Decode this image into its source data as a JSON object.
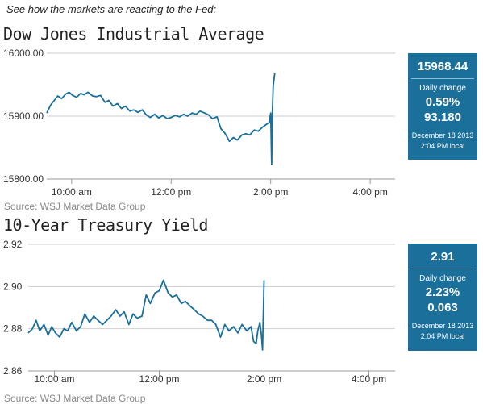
{
  "intro": "See how the markets are reacting to the Fed:",
  "source": "Source: WSJ Market Data Group",
  "chart_data": [
    {
      "type": "line",
      "title": "Dow Jones Industrial Average",
      "xlabel": "",
      "ylabel": "",
      "xlim": [
        9.5,
        16.5
      ],
      "ylim": [
        15800,
        16000
      ],
      "yticks": [
        15800,
        15900,
        16000
      ],
      "ytick_labels": [
        "15800.00",
        "15900.00",
        "16000.00"
      ],
      "xticks": [
        10,
        12,
        14,
        16
      ],
      "xtick_labels": [
        "10:00 am",
        "12:00 pm",
        "2:00 pm",
        "4:00 pm"
      ],
      "grid": true,
      "color": "#1a6f9b",
      "series": [
        {
          "x": [
            9.5,
            9.58,
            9.65,
            9.72,
            9.8,
            9.88,
            9.95,
            10.02,
            10.1,
            10.18,
            10.25,
            10.33,
            10.42,
            10.5,
            10.58,
            10.67,
            10.75,
            10.83,
            10.92,
            11.0,
            11.08,
            11.17,
            11.25,
            11.33,
            11.42,
            11.5,
            11.58,
            11.67,
            11.75,
            11.83,
            11.92,
            12.0,
            12.08,
            12.17,
            12.25,
            12.33,
            12.42,
            12.5,
            12.58,
            12.67,
            12.75,
            12.83,
            12.92,
            13.0,
            13.08,
            13.17,
            13.25,
            13.33,
            13.42,
            13.5,
            13.58,
            13.67,
            13.75,
            13.83,
            13.9,
            13.97,
            14.0,
            14.02,
            14.03,
            14.05,
            14.08
          ],
          "y": [
            15905,
            15918,
            15925,
            15932,
            15928,
            15935,
            15938,
            15933,
            15930,
            15936,
            15934,
            15938,
            15932,
            15931,
            15933,
            15922,
            15925,
            15916,
            15920,
            15912,
            15916,
            15908,
            15910,
            15906,
            15910,
            15902,
            15898,
            15903,
            15897,
            15901,
            15896,
            15898,
            15901,
            15899,
            15903,
            15900,
            15905,
            15903,
            15908,
            15905,
            15902,
            15896,
            15899,
            15880,
            15873,
            15860,
            15866,
            15862,
            15870,
            15872,
            15870,
            15878,
            15876,
            15882,
            15886,
            15890,
            15905,
            15823,
            15900,
            15948,
            15968
          ]
        }
      ],
      "panel": {
        "value": "15968.44",
        "label": "Daily change",
        "pct": "0.59%",
        "change": "93.180",
        "date": "December 18 2013",
        "time": "2:04 PM local"
      }
    },
    {
      "type": "line",
      "title": "10-Year Treasury Yield",
      "xlabel": "",
      "ylabel": "",
      "xlim": [
        9.5,
        16.5
      ],
      "ylim": [
        2.86,
        2.92
      ],
      "yticks": [
        2.86,
        2.88,
        2.9,
        2.92
      ],
      "ytick_labels": [
        "2.86",
        "2.88",
        "2.90",
        "2.92"
      ],
      "xticks": [
        10,
        12,
        14,
        16
      ],
      "xtick_labels": [
        "10:00 am",
        "12:00 pm",
        "2:00 pm",
        "4:00 pm"
      ],
      "grid": true,
      "color": "#1a6f9b",
      "series": [
        {
          "x": [
            9.5,
            9.58,
            9.65,
            9.72,
            9.8,
            9.88,
            9.95,
            10.02,
            10.1,
            10.18,
            10.25,
            10.33,
            10.42,
            10.5,
            10.58,
            10.67,
            10.75,
            10.83,
            10.92,
            11.0,
            11.08,
            11.17,
            11.25,
            11.33,
            11.42,
            11.5,
            11.58,
            11.67,
            11.75,
            11.83,
            11.92,
            12.0,
            12.08,
            12.17,
            12.25,
            12.33,
            12.42,
            12.5,
            12.58,
            12.67,
            12.75,
            12.83,
            12.92,
            13.0,
            13.08,
            13.17,
            13.25,
            13.33,
            13.42,
            13.5,
            13.58,
            13.67,
            13.75,
            13.8,
            13.85,
            13.88,
            13.92,
            13.95,
            13.97,
            14.0
          ],
          "y": [
            2.878,
            2.88,
            2.884,
            2.879,
            2.882,
            2.877,
            2.881,
            2.878,
            2.876,
            2.88,
            2.879,
            2.883,
            2.879,
            2.881,
            2.887,
            2.883,
            2.886,
            2.884,
            2.882,
            2.884,
            2.886,
            2.889,
            2.886,
            2.888,
            2.882,
            2.887,
            2.885,
            2.886,
            2.896,
            2.892,
            2.897,
            2.898,
            2.903,
            2.897,
            2.895,
            2.896,
            2.892,
            2.893,
            2.891,
            2.889,
            2.887,
            2.886,
            2.884,
            2.884,
            2.882,
            2.876,
            2.882,
            2.879,
            2.881,
            2.878,
            2.882,
            2.879,
            2.881,
            2.874,
            2.873,
            2.879,
            2.883,
            2.877,
            2.87,
            2.903
          ]
        }
      ],
      "panel": {
        "value": "2.91",
        "label": "Daily change",
        "pct": "2.23%",
        "change": "0.063",
        "date": "December 18 2013",
        "time": "2:04 PM local"
      }
    }
  ]
}
